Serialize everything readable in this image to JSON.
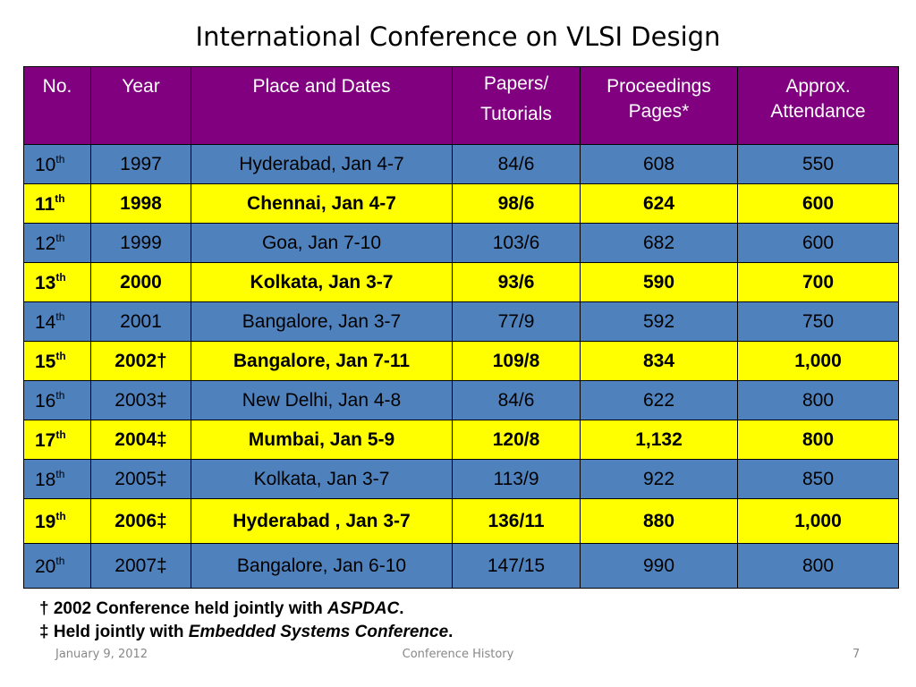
{
  "title": "International Conference on VLSI Design",
  "table": {
    "headers": {
      "no": "No.",
      "year": "Year",
      "place": "Place and Dates",
      "papers_1": "Papers/",
      "papers_2": "Tutorials",
      "proceedings_1": "Proceedings",
      "proceedings_2": "Pages*",
      "attendance_1": "Approx.",
      "attendance_2": "Attendance"
    },
    "rows": [
      {
        "no": "10",
        "suffix": "th",
        "year": "1997",
        "place": "Hyderabad, Jan 4-7",
        "papers": "84/6",
        "pages": "608",
        "attendance": "550"
      },
      {
        "no": "11",
        "suffix": "th",
        "year": "1998",
        "place": "Chennai, Jan 4-7",
        "papers": "98/6",
        "pages": "624",
        "attendance": "600"
      },
      {
        "no": "12",
        "suffix": "th",
        "year": "1999",
        "place": "Goa, Jan 7-10",
        "papers": "103/6",
        "pages": "682",
        "attendance": "600"
      },
      {
        "no": "13",
        "suffix": "th",
        "year": "2000",
        "place": "Kolkata, Jan 3-7",
        "papers": "93/6",
        "pages": "590",
        "attendance": "700"
      },
      {
        "no": "14",
        "suffix": "th",
        "year": "2001",
        "place": "Bangalore, Jan 3-7",
        "papers": "77/9",
        "pages": "592",
        "attendance": "750"
      },
      {
        "no": "15",
        "suffix": "th",
        "year": "2002†",
        "place": "Bangalore, Jan 7-11",
        "papers": "109/8",
        "pages": "834",
        "attendance": "1,000"
      },
      {
        "no": "16",
        "suffix": "th",
        "year": "2003‡",
        "place": "New Delhi, Jan 4-8",
        "papers": "84/6",
        "pages": "622",
        "attendance": "800"
      },
      {
        "no": "17",
        "suffix": "th",
        "year": "2004‡",
        "place": "Mumbai, Jan 5-9",
        "papers": "120/8",
        "pages": "1,132",
        "attendance": "800"
      },
      {
        "no": "18",
        "suffix": "th",
        "year": "2005‡",
        "place": "Kolkata, Jan 3-7",
        "papers": "113/9",
        "pages": "922",
        "attendance": "850"
      },
      {
        "no": "19",
        "suffix": "th",
        "year": "2006‡",
        "place": "Hyderabad , Jan 3-7",
        "papers": "136/11",
        "pages": "880",
        "attendance": "1,000"
      },
      {
        "no": "20",
        "suffix": "th",
        "year": "2007‡",
        "place": "Bangalore, Jan 6-10",
        "papers": "147/15",
        "pages": "990",
        "attendance": "800"
      }
    ]
  },
  "footnotes": {
    "dagger_prefix": "† 2002 Conference held jointly with ",
    "dagger_em": "ASPDAC",
    "dagger_suffix": ".",
    "ddagger_prefix": "‡ Held jointly with ",
    "ddagger_em": "Embedded Systems Conference",
    "ddagger_suffix": "."
  },
  "footer": {
    "date": "January 9, 2012",
    "center": "Conference History",
    "page": "7"
  },
  "colors": {
    "header_bg": "#800080",
    "row_blue": "#4f81bd",
    "row_yellow": "#ffff00"
  }
}
